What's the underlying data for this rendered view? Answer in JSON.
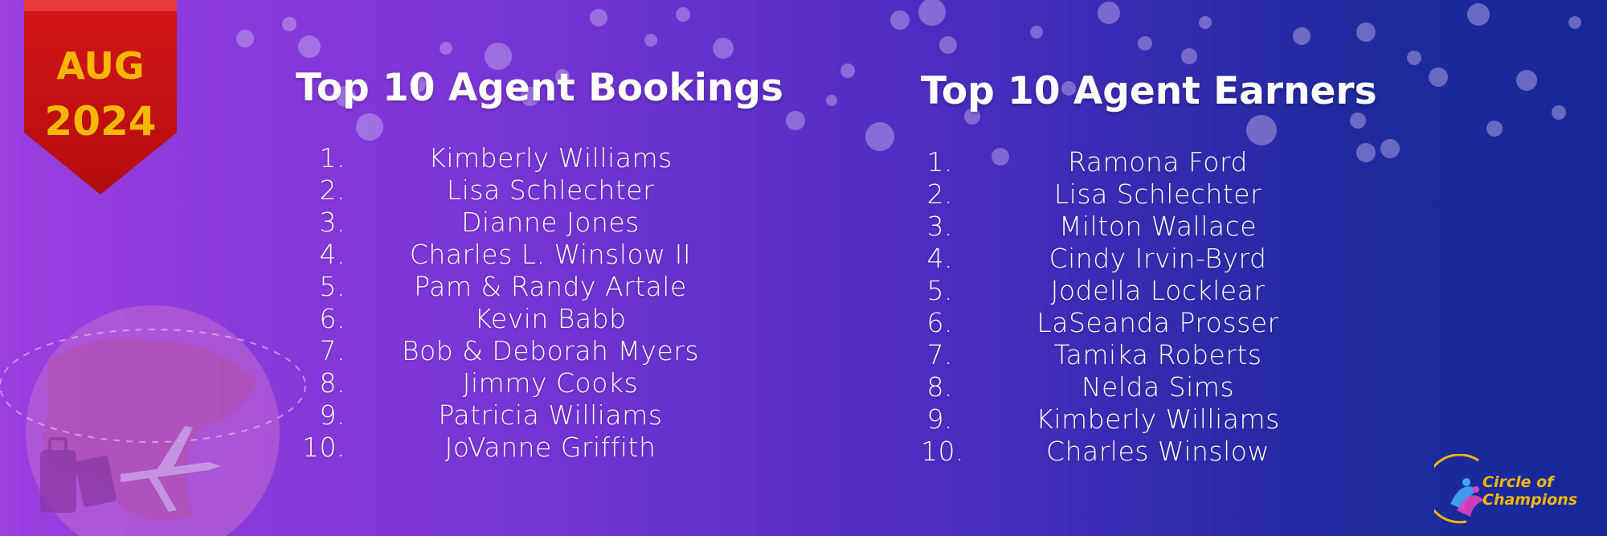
{
  "badge": {
    "month": "AUG",
    "year": "2024"
  },
  "bookings": {
    "title": "Top 10 Agent Bookings",
    "items": [
      {
        "rank": "1.",
        "name": "Kimberly Williams"
      },
      {
        "rank": "2.",
        "name": "Lisa Schlechter"
      },
      {
        "rank": "3.",
        "name": "Dianne Jones"
      },
      {
        "rank": "4.",
        "name": "Charles L. Winslow II"
      },
      {
        "rank": "5.",
        "name": "Pam & Randy Artale"
      },
      {
        "rank": "6.",
        "name": "Kevin Babb"
      },
      {
        "rank": "7.",
        "name": "Bob & Deborah Myers"
      },
      {
        "rank": "8.",
        "name": "Jimmy Cooks"
      },
      {
        "rank": "9.",
        "name": "Patricia Williams"
      },
      {
        "rank": "10.",
        "name": "JoVanne Griffith"
      }
    ]
  },
  "earners": {
    "title": "Top 10 Agent Earners",
    "items": [
      {
        "rank": "1.",
        "name": "Ramona Ford"
      },
      {
        "rank": "2.",
        "name": "Lisa Schlechter"
      },
      {
        "rank": "3.",
        "name": "Milton Wallace"
      },
      {
        "rank": "4.",
        "name": "Cindy Irvin-Byrd"
      },
      {
        "rank": "5.",
        "name": "Jodella Locklear"
      },
      {
        "rank": "6.",
        "name": "LaSeanda Prosser"
      },
      {
        "rank": "7.",
        "name": "Tamika Roberts"
      },
      {
        "rank": "8.",
        "name": "Nelda Sims"
      },
      {
        "rank": "9.",
        "name": "Kimberly Williams"
      },
      {
        "rank": "10.",
        "name": "Charles Winslow"
      }
    ]
  },
  "logo": {
    "line1": "Circle of",
    "line2": "Champions"
  },
  "colors": {
    "accent": "#f5b800",
    "ribbon": "#c8100f",
    "text": "#ffffff",
    "bg_start": "#9a3fe0",
    "bg_end": "#17289a"
  },
  "icons": [
    "globe-icon",
    "luggage-icon",
    "passport-icon",
    "airplane-icon",
    "champions-logo-icon"
  ]
}
